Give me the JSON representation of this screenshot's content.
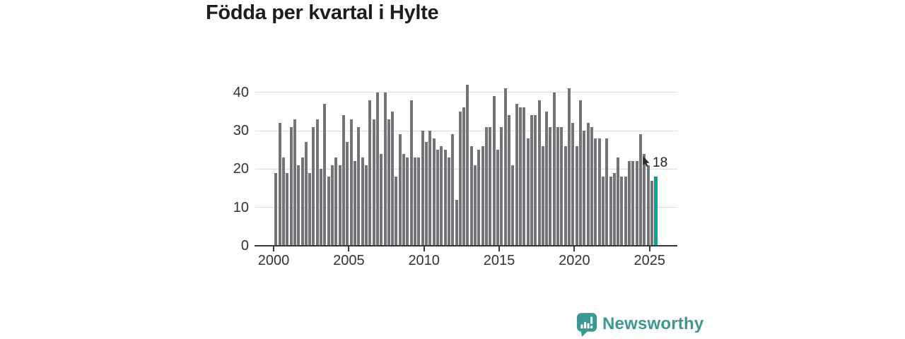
{
  "title": "Födda per kvartal i Hylte",
  "annotation": {
    "last_value_label": "18"
  },
  "branding": {
    "name": "Newsworthy",
    "icon": "newsworthy-speech-bubble-bars-icon",
    "color": "#3a9a91"
  },
  "colors": {
    "bar": "#737478",
    "highlight": "#00a29e",
    "axis": "#38383a",
    "grid": "#dcdcdc",
    "tick_text": "#333333",
    "title_text": "#1d1d1d"
  },
  "chart_data": {
    "type": "bar",
    "title": "Födda per kvartal i Hylte",
    "xlabel": "",
    "ylabel": "",
    "x_start": {
      "year": 2000,
      "quarter": 1
    },
    "x_end": {
      "year": 2025,
      "quarter": 2
    },
    "x_tick_labels": [
      "2000",
      "2005",
      "2010",
      "2015",
      "2020",
      "2025"
    ],
    "y_tick_labels": [
      "0",
      "10",
      "20",
      "30",
      "40"
    ],
    "ylim": [
      0,
      44
    ],
    "grid": "horizontal",
    "legend": "none",
    "highlight_last_bar": true,
    "last_value_label": "18",
    "values": [
      19,
      32,
      23,
      19,
      31,
      33,
      21,
      23,
      27,
      19,
      31,
      33,
      20,
      37,
      18,
      21,
      23,
      21,
      34,
      27,
      33,
      22,
      31,
      23,
      21,
      38,
      33,
      40,
      24,
      40,
      33,
      35,
      18,
      29,
      24,
      23,
      38,
      23,
      23,
      30,
      27,
      30,
      28,
      25,
      26,
      25,
      23,
      29,
      12,
      35,
      36,
      42,
      26,
      21,
      25,
      26,
      31,
      31,
      39,
      25,
      31,
      41,
      34,
      21,
      37,
      36,
      36,
      28,
      34,
      34,
      38,
      26,
      35,
      31,
      40,
      31,
      31,
      26,
      41,
      32,
      26,
      38,
      30,
      32,
      31,
      28,
      28,
      18,
      28,
      18,
      19,
      23,
      18,
      18,
      22,
      22,
      22,
      29,
      24,
      21,
      17,
      18
    ]
  }
}
